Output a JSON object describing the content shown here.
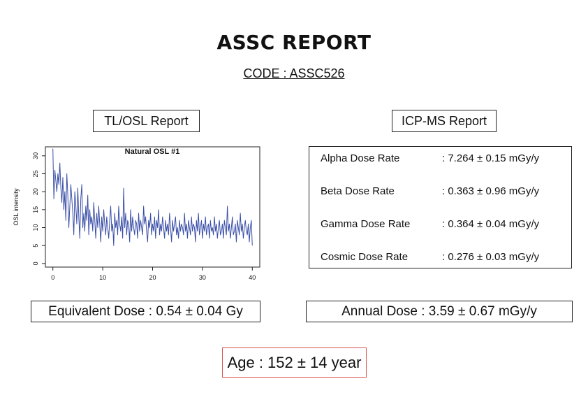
{
  "report": {
    "title": "ASSC REPORT",
    "code": "CODE : ASSC526"
  },
  "tl_osl": {
    "label": "TL/OSL Report",
    "equivalent_dose": "Equivalent Dose : 0.54 ± 0.04 Gy"
  },
  "icp_ms": {
    "label": "ICP-MS Report",
    "rows": [
      {
        "name": "Alpha Dose Rate",
        "value": ": 7.264 ± 0.15 mGy/y"
      },
      {
        "name": "Beta Dose Rate",
        "value": ": 0.363 ± 0.96 mGy/y"
      },
      {
        "name": "Gamma Dose Rate",
        "value": ": 0.364 ± 0.04 mGy/y"
      },
      {
        "name": "Cosmic Dose Rate",
        "value": ": 0.276 ± 0.03 mGy/y"
      }
    ],
    "annual_dose": "Annual Dose : 3.59 ± 0.67 mGy/y"
  },
  "age": "Age : 152 ± 14 year",
  "chart_data": {
    "type": "line",
    "title": "Natural OSL #1",
    "xlabel": "",
    "ylabel": "OSL intensity",
    "xlim": [
      -1.5,
      41.5
    ],
    "ylim": [
      -1,
      32.5
    ],
    "xticks": [
      0,
      10,
      20,
      30,
      40
    ],
    "yticks": [
      0,
      5,
      10,
      15,
      20,
      25,
      30
    ],
    "color": "#3b4fa8",
    "grid": false,
    "series": [
      {
        "x": [
          0.0,
          0.2,
          0.4,
          0.6,
          0.8,
          1.0,
          1.2,
          1.4,
          1.6,
          1.8,
          2.0,
          2.2,
          2.4,
          2.6,
          2.8,
          3.0,
          3.2,
          3.4,
          3.6,
          3.8,
          4.0,
          4.2,
          4.4,
          4.6,
          4.8,
          5.0,
          5.2,
          5.4,
          5.6,
          5.8,
          6.0,
          6.2,
          6.4,
          6.6,
          6.8,
          7.0,
          7.2,
          7.4,
          7.6,
          7.8,
          8.0,
          8.2,
          8.4,
          8.6,
          8.8,
          9.0,
          9.2,
          9.4,
          9.6,
          9.8,
          10.0,
          10.2,
          10.4,
          10.6,
          10.8,
          11.0,
          11.2,
          11.4,
          11.6,
          11.8,
          12.0,
          12.2,
          12.4,
          12.6,
          12.8,
          13.0,
          13.2,
          13.4,
          13.6,
          13.8,
          14.0,
          14.2,
          14.4,
          14.6,
          14.8,
          15.0,
          15.2,
          15.4,
          15.6,
          15.8,
          16.0,
          16.2,
          16.4,
          16.6,
          16.8,
          17.0,
          17.2,
          17.4,
          17.6,
          17.8,
          18.0,
          18.2,
          18.4,
          18.6,
          18.8,
          19.0,
          19.2,
          19.4,
          19.6,
          19.8,
          20.0,
          20.2,
          20.4,
          20.6,
          20.8,
          21.0,
          21.2,
          21.4,
          21.6,
          21.8,
          22.0,
          22.2,
          22.4,
          22.6,
          22.8,
          23.0,
          23.2,
          23.4,
          23.6,
          23.8,
          24.0,
          24.2,
          24.4,
          24.6,
          24.8,
          25.0,
          25.2,
          25.4,
          25.6,
          25.8,
          26.0,
          26.2,
          26.4,
          26.6,
          26.8,
          27.0,
          27.2,
          27.4,
          27.6,
          27.8,
          28.0,
          28.2,
          28.4,
          28.6,
          28.8,
          29.0,
          29.2,
          29.4,
          29.6,
          29.8,
          30.0,
          30.2,
          30.4,
          30.6,
          30.8,
          31.0,
          31.2,
          31.4,
          31.6,
          31.8,
          32.0,
          32.2,
          32.4,
          32.6,
          32.8,
          33.0,
          33.2,
          33.4,
          33.6,
          33.8,
          34.0,
          34.2,
          34.4,
          34.6,
          34.8,
          35.0,
          35.2,
          35.4,
          35.6,
          35.8,
          36.0,
          36.2,
          36.4,
          36.6,
          36.8,
          37.0,
          37.2,
          37.4,
          37.6,
          37.8,
          38.0,
          38.2,
          38.4,
          38.6,
          38.8,
          39.0,
          39.2,
          39.4,
          39.6,
          39.8,
          40.0
        ],
        "y": [
          32,
          18,
          26,
          23,
          20,
          25,
          22,
          28,
          21,
          17,
          24,
          15,
          20,
          12,
          25,
          19,
          10,
          16,
          22,
          18,
          14,
          8,
          20,
          16,
          11,
          21,
          13,
          7,
          18,
          22,
          10,
          14,
          9,
          16,
          12,
          19,
          8,
          15,
          11,
          13,
          9,
          17,
          12,
          7,
          14,
          10,
          16,
          11,
          6,
          13,
          9,
          15,
          11,
          8,
          13,
          10,
          7,
          12,
          16,
          9,
          11,
          5,
          14,
          10,
          12,
          8,
          16,
          11,
          9,
          13,
          7,
          21,
          10,
          14,
          8,
          12,
          11,
          6,
          15,
          9,
          13,
          10,
          8,
          12,
          11,
          7,
          14,
          9,
          12,
          10,
          8,
          16,
          11,
          13,
          9,
          6,
          12,
          10,
          14,
          8,
          11,
          9,
          13,
          7,
          12,
          10,
          15,
          8,
          11,
          9,
          13,
          10,
          7,
          12,
          9,
          11,
          8,
          14,
          10,
          6,
          12,
          9,
          11,
          13,
          8,
          10,
          7,
          12,
          9,
          11,
          10,
          8,
          14,
          9,
          11,
          7,
          12,
          10,
          8,
          13,
          9,
          11,
          10,
          6,
          12,
          9,
          14,
          8,
          10,
          12,
          7,
          11,
          9,
          13,
          8,
          10,
          11,
          7,
          12,
          9,
          10,
          8,
          13,
          9,
          11,
          7,
          10,
          12,
          8,
          9,
          11,
          7,
          12,
          10,
          8,
          16,
          9,
          11,
          7,
          10,
          13,
          8,
          9,
          11,
          6,
          12,
          10,
          8,
          14,
          9,
          11,
          7,
          10,
          12,
          9,
          8,
          11,
          6,
          10,
          12,
          5
        ]
      }
    ]
  }
}
